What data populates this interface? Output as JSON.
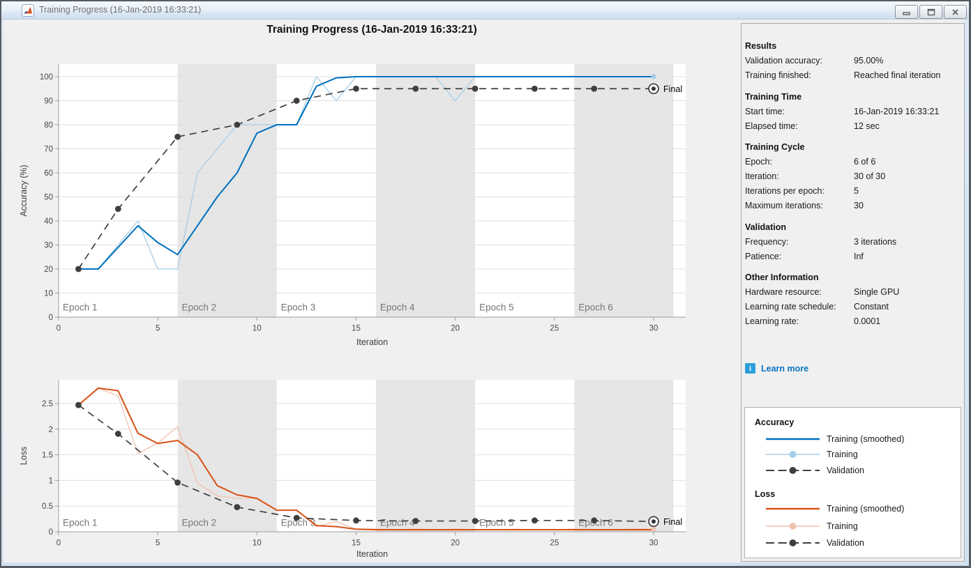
{
  "window": {
    "title": "Training Progress (16-Jan-2019 16:33:21)",
    "buttons": [
      "minimize",
      "maximize",
      "close"
    ]
  },
  "figure_title": "Training Progress (16-Jan-2019 16:33:21)",
  "colors": {
    "blue": "#0072BD",
    "light_blue": "#A5CDE8",
    "orange": "#D95319",
    "light_orange": "#F1C2AE",
    "validation": "#3F3F3F",
    "band": "#E6E6E6",
    "grid": "#E0E0E0",
    "axis": "#9C9C9C",
    "tick_text": "#474747",
    "label_text": "#3D3D3D",
    "epoch_text": "#767676",
    "figure_bg": "#F0F0F0",
    "link": "#0B74C2"
  },
  "right_panel": {
    "sections": [
      {
        "header": "Results",
        "rows": [
          {
            "label": "Validation accuracy:",
            "value": "95.00%"
          },
          {
            "label": "Training finished:",
            "value": "Reached final iteration"
          }
        ]
      },
      {
        "header": "Training Time",
        "rows": [
          {
            "label": "Start time:",
            "value": "16-Jan-2019 16:33:21"
          },
          {
            "label": "Elapsed time:",
            "value": "12 sec"
          }
        ]
      },
      {
        "header": "Training Cycle",
        "rows": [
          {
            "label": "Epoch:",
            "value": "6 of 6"
          },
          {
            "label": "Iteration:",
            "value": "30 of 30"
          },
          {
            "label": "Iterations per epoch:",
            "value": "5"
          },
          {
            "label": "Maximum iterations:",
            "value": "30"
          }
        ]
      },
      {
        "header": "Validation",
        "rows": [
          {
            "label": "Frequency:",
            "value": "3 iterations"
          },
          {
            "label": "Patience:",
            "value": "Inf"
          }
        ]
      },
      {
        "header": "Other Information",
        "rows": [
          {
            "label": "Hardware resource:",
            "value": "Single GPU"
          },
          {
            "label": "Learning rate schedule:",
            "value": "Constant"
          },
          {
            "label": "Learning rate:",
            "value": "0.0001"
          }
        ]
      }
    ],
    "learn_more": "Learn more"
  },
  "legend": {
    "groups": [
      {
        "title": "Accuracy",
        "items": [
          {
            "label": "Training (smoothed)",
            "style": "solid",
            "color": "blue"
          },
          {
            "label": "Training",
            "style": "marker-line",
            "color": "light_blue"
          },
          {
            "label": "Validation",
            "style": "dashed-marker",
            "color": "validation"
          }
        ]
      },
      {
        "title": "Loss",
        "items": [
          {
            "label": "Training (smoothed)",
            "style": "solid",
            "color": "orange"
          },
          {
            "label": "Training",
            "style": "marker-line",
            "color": "light_orange"
          },
          {
            "label": "Validation",
            "style": "dashed-marker",
            "color": "validation"
          }
        ]
      }
    ]
  },
  "chart_data": [
    {
      "type": "line",
      "name": "accuracy",
      "xlabel": "Iteration",
      "ylabel": "Accuracy (%)",
      "xlim": [
        0,
        31.6
      ],
      "ylim": [
        0,
        105.2
      ],
      "xticks": [
        0,
        5,
        10,
        15,
        20,
        25,
        30
      ],
      "yticks": [
        0,
        10,
        20,
        30,
        40,
        50,
        60,
        70,
        80,
        90,
        100
      ],
      "epoch_bands": {
        "labels": [
          "Epoch 1",
          "Epoch 2",
          "Epoch 3",
          "Epoch 4",
          "Epoch 5",
          "Epoch 6"
        ],
        "boundaries": [
          0,
          6,
          11,
          16,
          21,
          26,
          31
        ],
        "shaded": [
          1,
          3,
          5
        ]
      },
      "series": [
        {
          "name": "Training",
          "color": "light_blue",
          "values": [
            20,
            20,
            30,
            40,
            20,
            20,
            60,
            70,
            80,
            80,
            80,
            80,
            100,
            90,
            100,
            100,
            100,
            100,
            100,
            90,
            100,
            100,
            100,
            100,
            100,
            100,
            100,
            100,
            100,
            100
          ]
        },
        {
          "name": "Training (smoothed)",
          "color": "blue",
          "values": [
            20,
            20,
            29,
            38,
            31,
            26,
            38,
            50,
            60,
            76.5,
            80,
            80,
            96,
            99.5,
            100,
            100,
            100,
            100,
            100,
            100,
            100,
            100,
            100,
            100,
            100,
            100,
            100,
            100,
            100,
            100
          ]
        },
        {
          "name": "Validation",
          "color": "validation",
          "x": [
            1,
            3,
            6,
            9,
            12,
            15,
            18,
            21,
            24,
            27,
            30
          ],
          "values": [
            20,
            45,
            75,
            80,
            90,
            95,
            95,
            95,
            95,
            95,
            95
          ]
        }
      ],
      "final_marker": {
        "x": 30,
        "y": 95,
        "label": "Final"
      }
    },
    {
      "type": "line",
      "name": "loss",
      "xlabel": "Iteration",
      "ylabel": "Loss",
      "xlim": [
        0,
        31.6
      ],
      "ylim": [
        0,
        2.96
      ],
      "xticks": [
        0,
        5,
        10,
        15,
        20,
        25,
        30
      ],
      "yticks": [
        0,
        0.5,
        1,
        1.5,
        2,
        2.5
      ],
      "epoch_bands": {
        "labels": [
          "Epoch 1",
          "Epoch 2",
          "Epoch 3",
          "Epoch 4",
          "Epoch 5",
          "Epoch 6"
        ],
        "boundaries": [
          0,
          6,
          11,
          16,
          21,
          26,
          31
        ],
        "shaded": [
          1,
          3,
          5
        ]
      },
      "series": [
        {
          "name": "Training",
          "color": "light_orange",
          "values": [
            2.47,
            2.8,
            2.65,
            1.52,
            1.73,
            2.05,
            0.95,
            0.7,
            0.65,
            0.65,
            0.42,
            0.42,
            0.1,
            0.2,
            0.05,
            0.05,
            0.04,
            0.05,
            0.04,
            0.05,
            0.04,
            0.04,
            0.05,
            0.04,
            0.04,
            0.05,
            0.04,
            0.04,
            0.05,
            0.05
          ]
        },
        {
          "name": "Training (smoothed)",
          "color": "orange",
          "values": [
            2.47,
            2.8,
            2.75,
            1.92,
            1.72,
            1.78,
            1.5,
            0.9,
            0.72,
            0.65,
            0.42,
            0.42,
            0.12,
            0.1,
            0.05,
            0.04,
            0.04,
            0.04,
            0.04,
            0.04,
            0.04,
            0.04,
            0.04,
            0.04,
            0.04,
            0.04,
            0.04,
            0.04,
            0.04,
            0.04
          ]
        },
        {
          "name": "Validation",
          "color": "validation",
          "x": [
            1,
            3,
            6,
            9,
            12,
            15,
            18,
            21,
            24,
            27,
            30
          ],
          "values": [
            2.47,
            1.91,
            0.96,
            0.48,
            0.27,
            0.22,
            0.21,
            0.21,
            0.22,
            0.22,
            0.2
          ]
        }
      ],
      "final_marker": {
        "x": 30,
        "y": 0.2,
        "label": "Final"
      }
    }
  ]
}
